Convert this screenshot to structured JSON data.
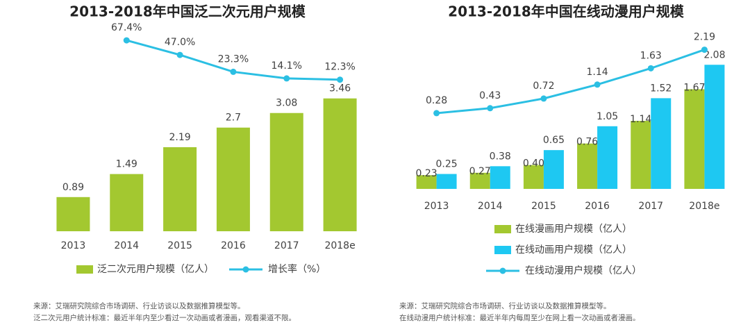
{
  "chart_data": [
    {
      "type": "bar",
      "title": "2013-2018年中国泛二次元用户规模",
      "categories": [
        "2013",
        "2014",
        "2015",
        "2016",
        "2017",
        "2018e"
      ],
      "series": [
        {
          "name": "泛二次元用户规模（亿人）",
          "type": "bar",
          "color": "#a3c830",
          "values": [
            0.89,
            1.49,
            2.19,
            2.7,
            3.08,
            3.46
          ]
        },
        {
          "name": "增长率（%）",
          "type": "line",
          "axis": "y2",
          "color": "#2bbfe3",
          "values": [
            null,
            67.4,
            47,
            23.3,
            14.1,
            12.3
          ],
          "value_labels": [
            null,
            "67.4%",
            "47.0%",
            "23.3%",
            "14.1%",
            "12.3%"
          ]
        }
      ],
      "ylim": [
        0,
        5.3
      ],
      "y2lim": [
        -200,
        85
      ],
      "notes": [
        "来源：艾瑞研究院综合市场调研、行业访谈以及数据推算模型等。",
        "泛二次元用户统计标准：最近半年内至少看过一次动画或者漫画，观看渠道不限。"
      ]
    },
    {
      "type": "bar",
      "title": "2013-2018年中国在线动漫用户规模",
      "categories": [
        "2013",
        "2014",
        "2015",
        "2016",
        "2017",
        "2018e"
      ],
      "series": [
        {
          "name": "在线漫画用户规模（亿人）",
          "type": "bar",
          "color": "#a3c830",
          "values": [
            0.23,
            0.27,
            0.4,
            0.76,
            1.14,
            1.67
          ],
          "value_labels": [
            "0.23",
            "0.27",
            "0.40",
            "0.76",
            "1.14",
            "1.67"
          ]
        },
        {
          "name": "在线动画用户规模（亿人）",
          "type": "bar",
          "color": "#1ec8f2",
          "values": [
            0.25,
            0.38,
            0.65,
            1.05,
            1.52,
            2.08
          ]
        },
        {
          "name": "在线动漫用户规模（亿人）",
          "type": "line",
          "axis": "y2",
          "color": "#2bbfe3",
          "values": [
            0.28,
            0.43,
            0.72,
            1.14,
            1.63,
            2.19
          ]
        }
      ],
      "ylim": [
        0,
        2.7
      ],
      "y2lim": [
        -2,
        2.85
      ],
      "notes": [
        "来源：艾瑞研究院综合市场调研、行业访谈以及数据推算模型等。",
        "在线动漫用户统计标准：最近半年内每周至少在网上看一次动画或者漫画。"
      ]
    }
  ]
}
